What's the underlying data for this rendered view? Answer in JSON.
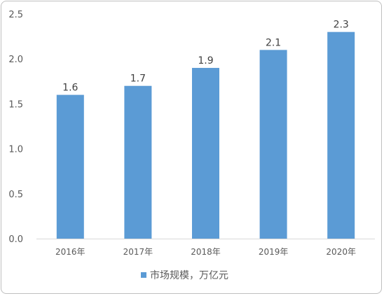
{
  "chart_data": {
    "type": "bar",
    "categories": [
      "2016年",
      "2017年",
      "2018年",
      "2019年",
      "2020年"
    ],
    "series": [
      {
        "name": "市场规模，万亿元",
        "values": [
          1.6,
          1.7,
          1.9,
          2.1,
          2.3
        ]
      }
    ],
    "data_labels": [
      "1.6",
      "1.7",
      "1.9",
      "2.1",
      "2.3"
    ],
    "y_ticks": [
      "0.0",
      "0.5",
      "1.0",
      "1.5",
      "2.0",
      "2.5"
    ],
    "ylim": [
      0,
      2.5
    ],
    "grid": false,
    "legend_position": "bottom",
    "bar_color": "#5b9bd5",
    "axis_color": "#d9d9d9"
  }
}
